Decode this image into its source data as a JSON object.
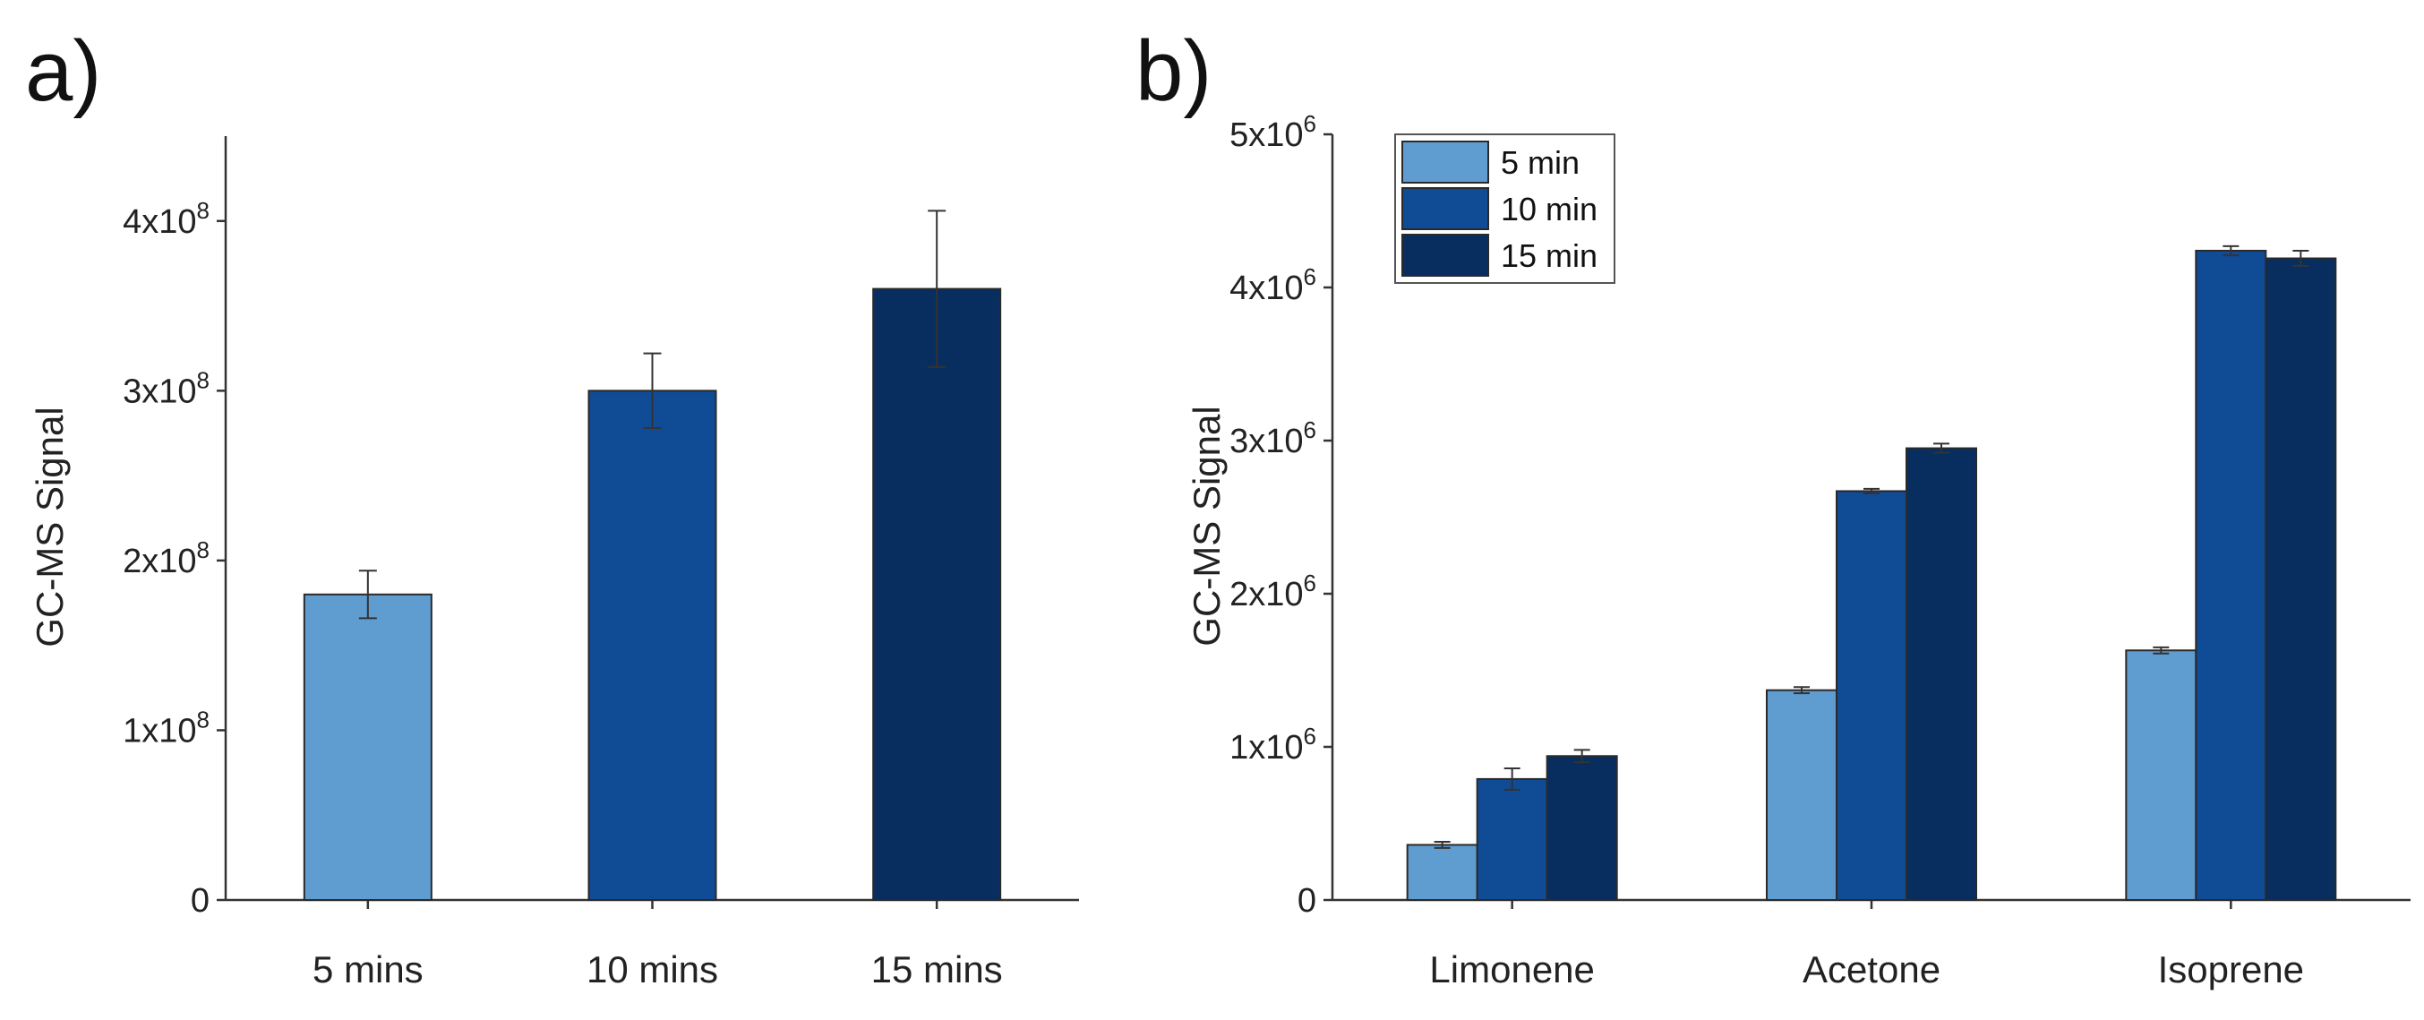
{
  "panel_labels": {
    "a": "a)",
    "b": "b)"
  },
  "chart_data": [
    {
      "type": "bar",
      "title": "",
      "xlabel": "",
      "ylabel": "GC-MS Signal",
      "ylim": [
        0,
        450000000
      ],
      "yticks": [
        {
          "value": 0,
          "mantissa": "0",
          "exp": ""
        },
        {
          "value": 100000000,
          "mantissa": "1x10",
          "exp": "8"
        },
        {
          "value": 200000000,
          "mantissa": "2x10",
          "exp": "8"
        },
        {
          "value": 300000000,
          "mantissa": "3x10",
          "exp": "8"
        },
        {
          "value": 400000000,
          "mantissa": "4x10",
          "exp": "8"
        }
      ],
      "categories": [
        "5 mins",
        "10 mins",
        "15 mins"
      ],
      "values": [
        180000000,
        300000000,
        360000000
      ],
      "errors": [
        14000000,
        22000000,
        46000000
      ],
      "colors": [
        "#5f9dd1",
        "#104b96",
        "#072e5f"
      ]
    },
    {
      "type": "bar",
      "title": "",
      "xlabel": "",
      "ylabel": "GC-MS Signal",
      "ylim": [
        0,
        5000000
      ],
      "yticks": [
        {
          "value": 0,
          "mantissa": "0",
          "exp": ""
        },
        {
          "value": 1000000,
          "mantissa": "1x10",
          "exp": "6"
        },
        {
          "value": 2000000,
          "mantissa": "2x10",
          "exp": "6"
        },
        {
          "value": 3000000,
          "mantissa": "3x10",
          "exp": "6"
        },
        {
          "value": 4000000,
          "mantissa": "4x10",
          "exp": "6"
        },
        {
          "value": 5000000,
          "mantissa": "5x10",
          "exp": "6"
        }
      ],
      "categories": [
        "Limonene",
        "Acetone",
        "Isoprene"
      ],
      "legend_position": "top-left",
      "series": [
        {
          "name": "5 min",
          "color": "#5f9dd1",
          "values": [
            360000,
            1370000,
            1630000
          ],
          "errors": [
            20000,
            20000,
            20000
          ]
        },
        {
          "name": "10 min",
          "color": "#104b96",
          "values": [
            790000,
            2670000,
            4240000
          ],
          "errors": [
            70000,
            15000,
            30000
          ]
        },
        {
          "name": "15 min",
          "color": "#072e5f",
          "values": [
            940000,
            2950000,
            4190000
          ],
          "errors": [
            40000,
            30000,
            50000
          ]
        }
      ]
    }
  ]
}
